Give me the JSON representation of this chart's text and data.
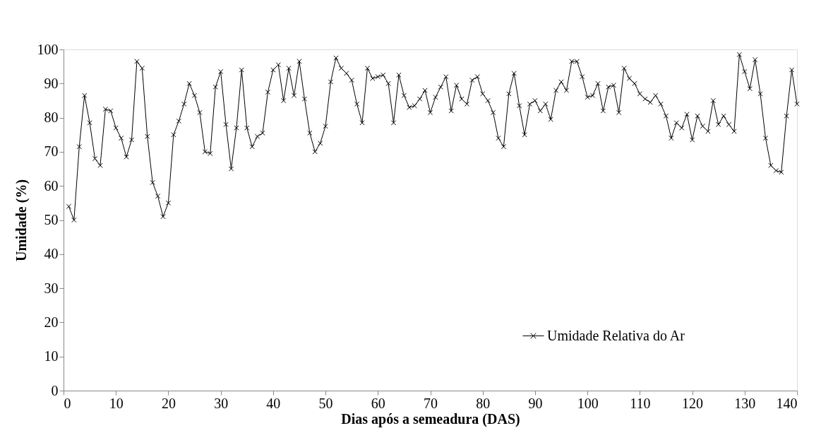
{
  "chart_data": {
    "type": "line",
    "xlabel": "Dias após a semeadura (DAS)",
    "ylabel": "Umidade (%)",
    "x": [
      1,
      2,
      3,
      4,
      5,
      6,
      7,
      8,
      9,
      10,
      11,
      12,
      13,
      14,
      15,
      16,
      17,
      18,
      19,
      20,
      21,
      22,
      23,
      24,
      25,
      26,
      27,
      28,
      29,
      30,
      31,
      32,
      33,
      34,
      35,
      36,
      37,
      38,
      39,
      40,
      41,
      42,
      43,
      44,
      45,
      46,
      47,
      48,
      49,
      50,
      51,
      52,
      53,
      54,
      55,
      56,
      57,
      58,
      59,
      60,
      61,
      62,
      63,
      64,
      65,
      66,
      67,
      68,
      69,
      70,
      71,
      72,
      73,
      74,
      75,
      76,
      77,
      78,
      79,
      80,
      81,
      82,
      83,
      84,
      85,
      86,
      87,
      88,
      89,
      90,
      91,
      92,
      93,
      94,
      95,
      96,
      97,
      98,
      99,
      100,
      101,
      102,
      103,
      104,
      105,
      106,
      107,
      108,
      109,
      110,
      111,
      112,
      113,
      114,
      115,
      116,
      117,
      118,
      119,
      120,
      121,
      122,
      123,
      124,
      125,
      126,
      127,
      128,
      129,
      130,
      131,
      132,
      133,
      134,
      135,
      136,
      137,
      138,
      139,
      140
    ],
    "series": [
      {
        "name": "Umidade Relativa do Ar",
        "color": "#000000",
        "values": [
          54,
          50,
          71.5,
          86.5,
          78.5,
          68,
          66,
          82.5,
          82,
          77,
          74,
          68.5,
          73.5,
          96.5,
          94.5,
          74.5,
          61,
          57,
          51,
          55,
          75,
          79,
          84,
          90,
          86.5,
          81.5,
          70,
          69.5,
          89,
          93.5,
          78,
          65,
          77,
          94,
          77,
          71.5,
          74.5,
          75.5,
          87.5,
          94,
          95.5,
          85,
          94.5,
          86.5,
          96.5,
          85.5,
          75.5,
          70,
          72.5,
          77.5,
          90.5,
          97.5,
          94.5,
          93,
          91,
          84,
          78.5,
          94.5,
          91.5,
          92,
          92.5,
          90,
          78.5,
          92.5,
          86.5,
          83,
          83.5,
          85.5,
          88,
          81.5,
          86,
          89,
          92,
          82,
          89.5,
          85.5,
          84,
          91,
          92,
          87,
          85,
          81.5,
          74,
          71.5,
          87,
          93,
          83.5,
          75,
          84,
          85,
          82,
          84,
          79.5,
          88,
          90.5,
          88,
          96.5,
          96.5,
          92,
          86,
          86.5,
          90,
          82,
          89,
          89.5,
          81.5,
          94.5,
          91.5,
          90,
          87,
          85.5,
          84.5,
          86.5,
          84,
          80.5,
          74,
          78.5,
          77,
          81,
          73.5,
          80.5,
          77.5,
          76,
          85,
          78,
          80.5,
          78,
          76,
          98.5,
          93.5,
          88.5,
          97,
          87,
          74,
          66,
          64.5,
          64,
          80.5,
          94,
          84
        ]
      }
    ],
    "xlim": [
      0,
      140
    ],
    "xticks": [
      0,
      10,
      20,
      30,
      40,
      50,
      60,
      70,
      80,
      90,
      100,
      110,
      120,
      130,
      140
    ],
    "ylim": [
      0,
      100
    ],
    "yticks": [
      0,
      10,
      20,
      30,
      40,
      50,
      60,
      70,
      80,
      90,
      100
    ],
    "grid": false,
    "legend": "bottom right",
    "marker": "cross",
    "line_style": "solid"
  }
}
